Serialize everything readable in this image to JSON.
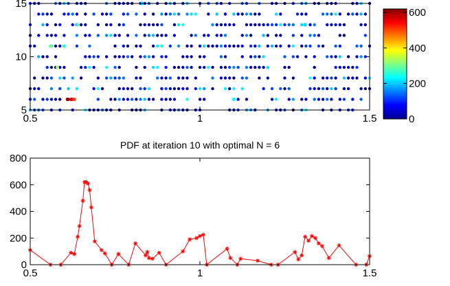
{
  "chart_data": [
    {
      "type": "scatter",
      "title": "",
      "xlabel": "",
      "ylabel": "",
      "xlim": [
        0.5,
        1.5
      ],
      "ylim": [
        5,
        15
      ],
      "x_ticks": [
        "0.5",
        "1",
        "1.5"
      ],
      "y_ticks": [
        "5",
        "10",
        "15"
      ],
      "colormap": "jet",
      "colorbar": {
        "range": [
          0,
          620
        ],
        "ticks": [
          "0",
          "200",
          "400",
          "600"
        ]
      },
      "grid": false,
      "rows": [
        5,
        6,
        7,
        8,
        9,
        10,
        11,
        12,
        13,
        14,
        15
      ],
      "hot_points": [
        {
          "x": 0.61,
          "y": 6,
          "value": 600
        },
        {
          "x": 0.62,
          "y": 6,
          "value": 560
        },
        {
          "x": 0.63,
          "y": 6,
          "value": 500
        },
        {
          "x": 0.58,
          "y": 9,
          "value": 330
        },
        {
          "x": 0.56,
          "y": 11,
          "value": 300
        },
        {
          "x": 0.64,
          "y": 13,
          "value": 280
        },
        {
          "x": 0.6,
          "y": 11,
          "value": 250
        },
        {
          "x": 0.83,
          "y": 15,
          "value": 220
        },
        {
          "x": 1.1,
          "y": 6,
          "value": 230
        },
        {
          "x": 1.31,
          "y": 13,
          "value": 210
        }
      ]
    },
    {
      "type": "line",
      "title": "PDF at iteration 10 with optimal N = 6",
      "xlabel": "",
      "ylabel": "",
      "xlim": [
        0.5,
        1.5
      ],
      "ylim": [
        0,
        800
      ],
      "x_ticks": [
        "0.5",
        "1",
        "1.5"
      ],
      "y_ticks": [
        "0",
        "200",
        "400",
        "600",
        "800"
      ],
      "grid": false,
      "marker": "asterisk",
      "color": "#ff0000",
      "x": [
        0.5,
        0.56,
        0.59,
        0.62,
        0.63,
        0.64,
        0.645,
        0.655,
        0.66,
        0.665,
        0.67,
        0.675,
        0.68,
        0.69,
        0.71,
        0.72,
        0.74,
        0.76,
        0.79,
        0.81,
        0.84,
        0.845,
        0.85,
        0.86,
        0.88,
        0.9,
        0.95,
        0.97,
        0.99,
        1.0,
        1.01,
        1.02,
        1.08,
        1.09,
        1.11,
        1.12,
        1.17,
        1.21,
        1.23,
        1.28,
        1.29,
        1.3,
        1.31,
        1.32,
        1.33,
        1.34,
        1.35,
        1.36,
        1.38,
        1.41,
        1.46,
        1.49,
        1.5
      ],
      "y": [
        110,
        0,
        0,
        90,
        80,
        210,
        290,
        480,
        620,
        620,
        610,
        560,
        430,
        175,
        110,
        85,
        0,
        80,
        0,
        160,
        70,
        95,
        50,
        45,
        90,
        0,
        100,
        190,
        200,
        215,
        225,
        0,
        120,
        50,
        0,
        45,
        30,
        0,
        0,
        95,
        40,
        70,
        210,
        180,
        215,
        200,
        160,
        140,
        50,
        145,
        0,
        0,
        65
      ]
    }
  ]
}
